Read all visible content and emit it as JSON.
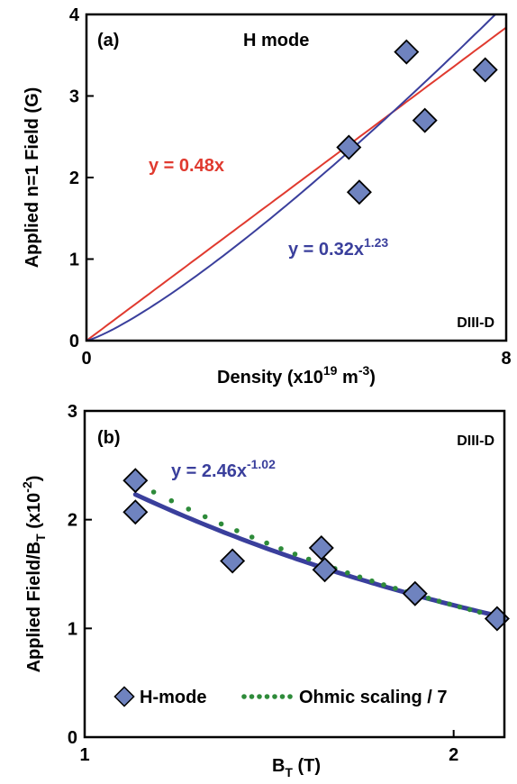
{
  "chart_data": [
    {
      "panel_label": "(a)",
      "type": "scatter",
      "title": "H mode",
      "corner_label": "DIII-D",
      "xlabel_main": "Density (x10",
      "xlabel_exp": "19",
      "xlabel_unit": " m",
      "xlabel_unit_exp": "-3",
      "xlabel_close": ")",
      "ylabel": "Applied n=1 Field (G)",
      "xlim": [
        0,
        8
      ],
      "ylim": [
        0,
        4
      ],
      "x_ticks": [
        0,
        8
      ],
      "y_ticks": [
        0,
        1,
        2,
        3,
        4
      ],
      "x_tick_labels": [
        "0",
        "8"
      ],
      "y_tick_labels": [
        "0",
        "1",
        "2",
        "3",
        "4"
      ],
      "series": [
        {
          "kind": "markers",
          "color": "#6f83bf",
          "points": [
            [
              5.0,
              2.37
            ],
            [
              5.2,
              1.82
            ],
            [
              6.1,
              3.54
            ],
            [
              6.45,
              2.7
            ],
            [
              7.6,
              3.32
            ]
          ]
        },
        {
          "kind": "line",
          "color": "#e03a2f",
          "coef": 0.48,
          "power": 1
        },
        {
          "kind": "line",
          "color": "#3a3f9c",
          "coef": 0.32,
          "power": 1.23
        }
      ],
      "annotations": [
        {
          "text": "y = 0.48x",
          "color": "#e03a2f"
        },
        {
          "text": "y = 0.32x",
          "sup": "1.23",
          "color": "#3a3f9c"
        }
      ]
    },
    {
      "panel_label": "(b)",
      "type": "scatter",
      "corner_label": "DIII-D",
      "xlabel_main": "B",
      "xlabel_sub": "T",
      "xlabel_unit": " (T)",
      "ylabel_main": "Applied Field/B",
      "ylabel_sub": "T",
      "ylabel_unit": " (x10",
      "ylabel_exp": "-2",
      "ylabel_close": ")",
      "x_scale": "log",
      "xlim": [
        1,
        2.2
      ],
      "ylim": [
        0,
        3
      ],
      "x_ticks": [
        1,
        2
      ],
      "y_ticks": [
        0,
        1,
        2,
        3
      ],
      "x_tick_labels": [
        "1",
        "2"
      ],
      "y_tick_labels": [
        "0",
        "1",
        "2",
        "3"
      ],
      "series": [
        {
          "name": "H-mode",
          "kind": "markers",
          "color": "#6f83bf",
          "points": [
            [
              1.1,
              2.36
            ],
            [
              1.1,
              2.07
            ],
            [
              1.32,
              1.62
            ],
            [
              1.56,
              1.74
            ],
            [
              1.57,
              1.54
            ],
            [
              1.86,
              1.32
            ],
            [
              2.17,
              1.09
            ]
          ]
        },
        {
          "kind": "line",
          "color": "#3a3f9c",
          "coef": 2.46,
          "power": -1.02,
          "x_from": 1.1,
          "x_to": 2.17
        },
        {
          "name": "Ohmic scaling / 7",
          "kind": "dotted",
          "color": "#2e8b3a",
          "coef": 2.6,
          "power": -1.1,
          "x_from": 1.1,
          "x_to": 2.1
        }
      ],
      "annotations": [
        {
          "text": "y = 2.46x",
          "sup": "-1.02",
          "color": "#3a3f9c"
        }
      ],
      "legend": {
        "position": "bottom-left"
      }
    }
  ]
}
